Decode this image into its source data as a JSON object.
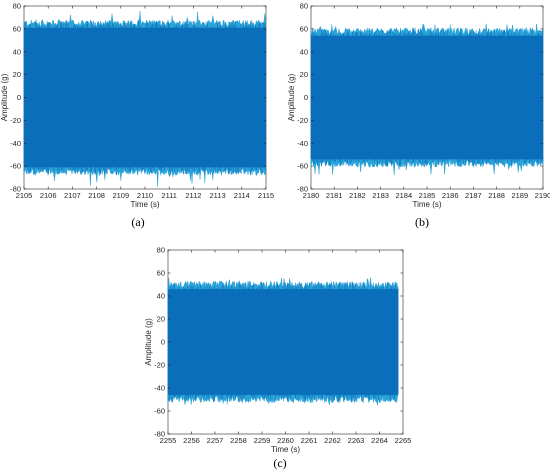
{
  "figure": {
    "captions": [
      "(a)",
      "(b)",
      "(c)"
    ]
  },
  "colors": {
    "signal_dark": "#0a6fba",
    "signal_light": "#2aa3d8",
    "axis": "#262626"
  },
  "chart_data": [
    {
      "type": "line",
      "caption": "(a)",
      "xlabel": "Time (s)",
      "ylabel": "Amplitude (g)",
      "xlim": [
        2105,
        2115
      ],
      "ylim": [
        -80,
        80
      ],
      "xticks": [
        2105,
        2106,
        2107,
        2108,
        2109,
        2110,
        2111,
        2112,
        2113,
        2114,
        2115
      ],
      "yticks": [
        -80,
        -60,
        -40,
        -20,
        0,
        20,
        40,
        60,
        80
      ],
      "series": [
        {
          "t_start": 2105,
          "t_end": 2115,
          "envelope_upper": 65,
          "envelope_lower": -65,
          "peak_max": 76,
          "peak_min": -78
        }
      ],
      "grid": false
    },
    {
      "type": "line",
      "caption": "(b)",
      "xlabel": "Time (s)",
      "ylabel": "Amplitude (g)",
      "xlim": [
        2180,
        2190
      ],
      "ylim": [
        -80,
        80
      ],
      "xticks": [
        2180,
        2181,
        2182,
        2183,
        2184,
        2185,
        2186,
        2187,
        2188,
        2189,
        2190
      ],
      "yticks": [
        -80,
        -60,
        -40,
        -20,
        0,
        20,
        40,
        60,
        80
      ],
      "series": [
        {
          "t_start": 2180,
          "t_end": 2190,
          "envelope_upper": 58,
          "envelope_lower": -58,
          "peak_max": 66,
          "peak_min": -68
        }
      ],
      "grid": false
    },
    {
      "type": "line",
      "caption": "(c)",
      "xlabel": "Time (s)",
      "ylabel": "Amplitude (g)",
      "xlim": [
        2255,
        2265
      ],
      "ylim": [
        -80,
        80
      ],
      "xticks": [
        2255,
        2256,
        2257,
        2258,
        2259,
        2260,
        2261,
        2262,
        2263,
        2264,
        2265
      ],
      "yticks": [
        -80,
        -60,
        -40,
        -20,
        0,
        20,
        40,
        60,
        80
      ],
      "series": [
        {
          "t_start": 2255,
          "t_end": 2264.8,
          "envelope_upper": 50,
          "envelope_lower": -50,
          "peak_max": 56,
          "peak_min": -57
        }
      ],
      "grid": false
    }
  ]
}
